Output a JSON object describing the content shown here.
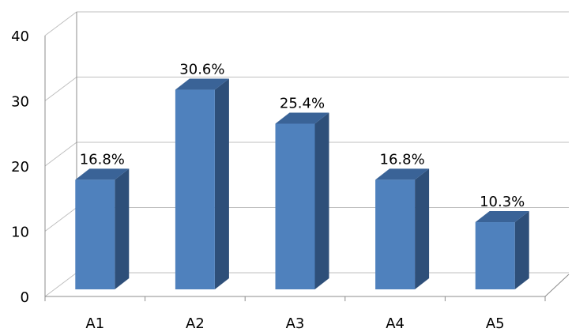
{
  "chart_data": {
    "type": "bar",
    "title": "",
    "xlabel": "",
    "ylabel": "",
    "ylim": [
      0,
      40
    ],
    "yticks": [
      0,
      10,
      20,
      30,
      40
    ],
    "grid": true,
    "style": "3d-column",
    "categories": [
      "A1",
      "A2",
      "A3",
      "A4",
      "A5"
    ],
    "values": [
      16.8,
      30.6,
      25.4,
      16.8,
      10.3
    ],
    "data_labels": [
      "16.8%",
      "30.6%",
      "25.4%",
      "16.8%",
      "10.3%"
    ],
    "colors": {
      "bar_front": "#4F81BD",
      "bar_side": "#2E4F79",
      "bar_top": "#3A6397",
      "grid": "#BFBFBF",
      "axis": "#8C8C8C"
    }
  }
}
